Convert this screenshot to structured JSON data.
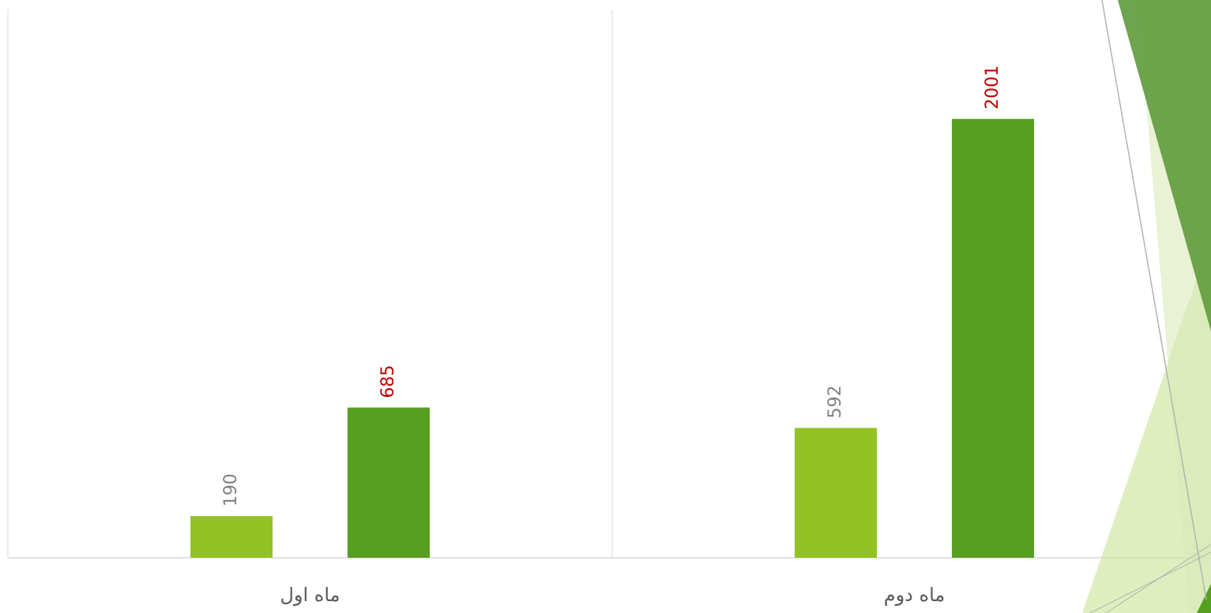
{
  "chart_data": {
    "type": "bar",
    "categories": [
      "ماه اول",
      "ماه دوم"
    ],
    "series": [
      {
        "color": "#93c225",
        "label_color": "#808080",
        "values": [
          190,
          592
        ]
      },
      {
        "color": "#55a021",
        "label_color": "#c00000",
        "values": [
          685,
          2001
        ]
      }
    ],
    "ylim": [
      0,
      2500
    ]
  }
}
